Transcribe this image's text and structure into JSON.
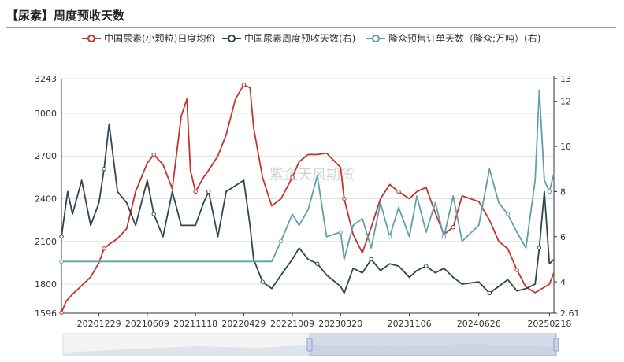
{
  "title": "【尿素】周度预收天数",
  "watermark": "紫金天风期货",
  "chart_data": {
    "type": "line",
    "title": "【尿素】周度预收天数",
    "x_ticks": [
      "20201229",
      "20210609",
      "20211118",
      "20220429",
      "20221009",
      "20230320",
      "20231106",
      "20240626",
      "20250218"
    ],
    "x_range": [
      "20200825",
      "20250305"
    ],
    "y_left": {
      "min": 1596,
      "max": 3243,
      "ticks": [
        1596,
        1800,
        2100,
        2400,
        2700,
        3000,
        3243
      ]
    },
    "y_right": {
      "min": 2.61,
      "max": 13,
      "ticks": [
        2.61,
        4,
        6,
        8,
        10,
        12,
        13
      ]
    },
    "grid": true,
    "legend_position": "top-left",
    "series": [
      {
        "name": "中国尿素(小颗粒)日度均价",
        "axis": "left",
        "color": "#c23531",
        "points": [
          [
            "20200825",
            1600
          ],
          [
            "20200910",
            1680
          ],
          [
            "20201001",
            1730
          ],
          [
            "20201101",
            1790
          ],
          [
            "20201201",
            1850
          ],
          [
            "20201229",
            1950
          ],
          [
            "20210115",
            2050
          ],
          [
            "20210201",
            2080
          ],
          [
            "20210301",
            2120
          ],
          [
            "20210401",
            2190
          ],
          [
            "20210501",
            2450
          ],
          [
            "20210609",
            2650
          ],
          [
            "20210701",
            2710
          ],
          [
            "20210801",
            2640
          ],
          [
            "20210901",
            2470
          ],
          [
            "20211001",
            2980
          ],
          [
            "20211020",
            3100
          ],
          [
            "20211101",
            2600
          ],
          [
            "20211118",
            2450
          ],
          [
            "20211215",
            2550
          ],
          [
            "20220101",
            2600
          ],
          [
            "20220201",
            2700
          ],
          [
            "20220301",
            2850
          ],
          [
            "20220401",
            3100
          ],
          [
            "20220429",
            3200
          ],
          [
            "20220520",
            3180
          ],
          [
            "20220601",
            2900
          ],
          [
            "20220701",
            2550
          ],
          [
            "20220801",
            2350
          ],
          [
            "20220901",
            2400
          ],
          [
            "20221009",
            2550
          ],
          [
            "20221101",
            2660
          ],
          [
            "20221201",
            2710
          ],
          [
            "20230101",
            2710
          ],
          [
            "20230201",
            2720
          ],
          [
            "20230320",
            2620
          ],
          [
            "20230401",
            2400
          ],
          [
            "20230501",
            2150
          ],
          [
            "20230601",
            2020
          ],
          [
            "20230701",
            2200
          ],
          [
            "20230801",
            2400
          ],
          [
            "20230901",
            2500
          ],
          [
            "20231001",
            2450
          ],
          [
            "20231106",
            2400
          ],
          [
            "20231201",
            2450
          ],
          [
            "20240101",
            2480
          ],
          [
            "20240201",
            2300
          ],
          [
            "20240301",
            2150
          ],
          [
            "20240401",
            2200
          ],
          [
            "20240501",
            2420
          ],
          [
            "20240626",
            2380
          ],
          [
            "20240801",
            2250
          ],
          [
            "20240901",
            2100
          ],
          [
            "20241001",
            2050
          ],
          [
            "20241101",
            1900
          ],
          [
            "20241201",
            1780
          ],
          [
            "20250101",
            1740
          ],
          [
            "20250218",
            1800
          ],
          [
            "20250305",
            1880
          ]
        ]
      },
      {
        "name": "中国尿素周度预收天数(右)",
        "axis": "right",
        "color": "#2f4554",
        "points": [
          [
            "20200825",
            6.0
          ],
          [
            "20200915",
            8.0
          ],
          [
            "20201001",
            7.0
          ],
          [
            "20201101",
            8.5
          ],
          [
            "20201201",
            6.5
          ],
          [
            "20201229",
            7.5
          ],
          [
            "20210115",
            9.0
          ],
          [
            "20210201",
            11.0
          ],
          [
            "20210301",
            8.0
          ],
          [
            "20210401",
            7.5
          ],
          [
            "20210501",
            6.5
          ],
          [
            "20210609",
            8.5
          ],
          [
            "20210701",
            7.0
          ],
          [
            "20210801",
            6.0
          ],
          [
            "20210901",
            8.0
          ],
          [
            "20211001",
            6.5
          ],
          [
            "20211118",
            6.5
          ],
          [
            "20211215",
            7.5
          ],
          [
            "20220101",
            8.0
          ],
          [
            "20220201",
            6.0
          ],
          [
            "20220301",
            8.0
          ],
          [
            "20220429",
            8.5
          ],
          [
            "20220520",
            6.5
          ],
          [
            "20220601",
            5.0
          ],
          [
            "20220701",
            4.0
          ],
          [
            "20220801",
            3.7
          ],
          [
            "20220901",
            4.3
          ],
          [
            "20221009",
            5.0
          ],
          [
            "20221101",
            5.5
          ],
          [
            "20221201",
            5.0
          ],
          [
            "20230101",
            4.8
          ],
          [
            "20230201",
            4.3
          ],
          [
            "20230320",
            3.8
          ],
          [
            "20230401",
            3.5
          ],
          [
            "20230501",
            4.6
          ],
          [
            "20230601",
            4.4
          ],
          [
            "20230701",
            5.0
          ],
          [
            "20230801",
            4.5
          ],
          [
            "20230901",
            4.8
          ],
          [
            "20231001",
            4.7
          ],
          [
            "20231106",
            4.2
          ],
          [
            "20231201",
            4.5
          ],
          [
            "20240101",
            4.7
          ],
          [
            "20240201",
            4.4
          ],
          [
            "20240301",
            4.6
          ],
          [
            "20240401",
            4.2
          ],
          [
            "20240501",
            3.9
          ],
          [
            "20240626",
            4.0
          ],
          [
            "20240801",
            3.5
          ],
          [
            "20240901",
            3.8
          ],
          [
            "20241001",
            4.1
          ],
          [
            "20241101",
            3.6
          ],
          [
            "20241201",
            3.7
          ],
          [
            "20250101",
            3.9
          ],
          [
            "20250115",
            5.5
          ],
          [
            "20250201",
            8.0
          ],
          [
            "20250218",
            4.8
          ],
          [
            "20250305",
            5.0
          ]
        ]
      },
      {
        "name": "隆众预售订单天数（隆众;万吨）(右)",
        "axis": "right",
        "color": "#61a0a8",
        "points": [
          [
            "20200825",
            4.9
          ],
          [
            "20201229",
            4.9
          ],
          [
            "20210609",
            4.9
          ],
          [
            "20211118",
            4.9
          ],
          [
            "20220429",
            4.9
          ],
          [
            "20220801",
            4.9
          ],
          [
            "20220901",
            5.8
          ],
          [
            "20221009",
            7.0
          ],
          [
            "20221101",
            6.5
          ],
          [
            "20221201",
            7.2
          ],
          [
            "20230101",
            8.7
          ],
          [
            "20230201",
            6.0
          ],
          [
            "20230320",
            6.2
          ],
          [
            "20230401",
            5.0
          ],
          [
            "20230501",
            6.5
          ],
          [
            "20230601",
            6.8
          ],
          [
            "20230701",
            5.5
          ],
          [
            "20230801",
            7.5
          ],
          [
            "20230901",
            6.0
          ],
          [
            "20231001",
            7.3
          ],
          [
            "20231106",
            6.0
          ],
          [
            "20231201",
            7.8
          ],
          [
            "20240101",
            6.2
          ],
          [
            "20240201",
            7.5
          ],
          [
            "20240301",
            6.0
          ],
          [
            "20240401",
            7.8
          ],
          [
            "20240501",
            5.8
          ],
          [
            "20240626",
            6.5
          ],
          [
            "20240801",
            9.0
          ],
          [
            "20240901",
            7.5
          ],
          [
            "20241001",
            7.0
          ],
          [
            "20241101",
            6.2
          ],
          [
            "20241201",
            5.5
          ],
          [
            "20250101",
            8.5
          ],
          [
            "20250115",
            12.5
          ],
          [
            "20250201",
            8.5
          ],
          [
            "20250218",
            8.0
          ],
          [
            "20250305",
            8.8
          ]
        ]
      }
    ]
  }
}
